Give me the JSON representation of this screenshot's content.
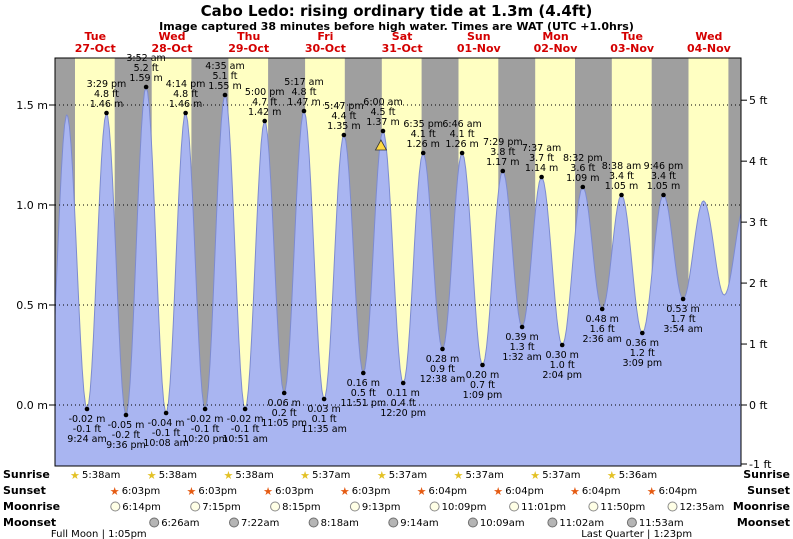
{
  "title": "Cabo Ledo: rising ordinary tide at 1.3m (4.4ft)",
  "subtitle": "Image captured 38 minutes before high water. Times are WAT (UTC +1.0hrs)",
  "colors": {
    "day_band": "#ffffc2",
    "night_band": "#9f9f9f",
    "tide_fill": "#a9b5f1",
    "tide_stroke": "#7d8bd0",
    "day_label": "#d40000",
    "now_marker": "#ffd942",
    "grid": "#000000",
    "sunrise_star": "#e3c126",
    "sunset_star": "#e55b13",
    "moonrise_fill": "#ffffe6",
    "moonrise_stroke": "#8a8a8a",
    "moonset_fill": "#b5b5b5",
    "moonset_stroke": "#6e6e6e"
  },
  "days": [
    {
      "weekday": "Tue",
      "date": "27-Oct",
      "daylight": [
        5.63,
        18.05
      ]
    },
    {
      "weekday": "Wed",
      "date": "28-Oct",
      "daylight": [
        5.63,
        18.05
      ]
    },
    {
      "weekday": "Thu",
      "date": "29-Oct",
      "daylight": [
        5.63,
        18.05
      ]
    },
    {
      "weekday": "Fri",
      "date": "30-Oct",
      "daylight": [
        5.62,
        18.05
      ]
    },
    {
      "weekday": "Sat",
      "date": "31-Oct",
      "daylight": [
        5.62,
        18.07
      ]
    },
    {
      "weekday": "Sun",
      "date": "01-Nov",
      "daylight": [
        5.62,
        18.07
      ]
    },
    {
      "weekday": "Mon",
      "date": "02-Nov",
      "daylight": [
        5.62,
        18.07
      ]
    },
    {
      "weekday": "Tue",
      "date": "03-Nov",
      "daylight": [
        5.6,
        18.07
      ]
    },
    {
      "weekday": "Wed",
      "date": "04-Nov",
      "daylight": [
        5.6,
        18.07
      ]
    }
  ],
  "y_axis": {
    "left": [
      {
        "text": "1.5 m",
        "m": 1.5
      },
      {
        "text": "1.0 m",
        "m": 1.0
      },
      {
        "text": "0.5 m",
        "m": 0.5
      },
      {
        "text": "0.0 m",
        "m": 0.0
      }
    ],
    "right": [
      {
        "text": "5 ft",
        "m": 1.524
      },
      {
        "text": "4 ft",
        "m": 1.2192
      },
      {
        "text": "3 ft",
        "m": 0.9144
      },
      {
        "text": "2 ft",
        "m": 0.6096
      },
      {
        "text": "1 ft",
        "m": 0.3048
      },
      {
        "text": "0 ft",
        "m": 0.0
      },
      {
        "text": "-1 ft",
        "m": -0.3048
      }
    ]
  },
  "chart_data": {
    "type": "area",
    "title": "Cabo Ledo tide height, Tue 27-Oct to Wed 04-Nov",
    "x_unit": "hours since Tue 27-Oct 00:00 WAT",
    "y_unit": "m",
    "xlim": [
      -0.62,
      214
    ],
    "ylim_m": [
      -0.305,
      1.735
    ],
    "grid_m": [
      0.0,
      0.5,
      1.0,
      1.5
    ],
    "legend": "blue area = tide height; yellow bands = daylight; gray bands = night",
    "extremes": [
      {
        "t": -2.9,
        "m": -0.02,
        "kind": "low"
      },
      {
        "t": 3.08,
        "m": 1.45,
        "kind": "high"
      },
      {
        "t": 9.4,
        "m": -0.02,
        "kind": "low",
        "lines": [
          "-0.02 m",
          "-0.1 ft",
          "9:24 am"
        ]
      },
      {
        "t": 15.48,
        "m": 1.46,
        "kind": "high",
        "lines": [
          "3:29 pm",
          "4.8 ft",
          "1.46 m"
        ]
      },
      {
        "t": 21.6,
        "m": -0.05,
        "kind": "low",
        "lines": [
          "-0.05 m",
          "-0.2 ft",
          "9:36 pm"
        ]
      },
      {
        "t": 27.87,
        "m": 1.59,
        "kind": "high",
        "lines": [
          "3:52 am",
          "5.2 ft",
          "1.59 m"
        ]
      },
      {
        "t": 34.13,
        "m": -0.04,
        "kind": "low",
        "lines": [
          "-0.04 m",
          "-0.1 ft",
          "10:08 am"
        ]
      },
      {
        "t": 40.23,
        "m": 1.46,
        "kind": "high",
        "lines": [
          "4:14 pm",
          "4.8 ft",
          "1.46 m"
        ]
      },
      {
        "t": 46.33,
        "m": -0.02,
        "kind": "low",
        "lines": [
          "-0.02 m",
          "-0.1 ft",
          "10:20 pm"
        ]
      },
      {
        "t": 52.58,
        "m": 1.55,
        "kind": "high",
        "lines": [
          "4:35 am",
          "5.1 ft",
          "1.55 m"
        ]
      },
      {
        "t": 58.85,
        "m": -0.02,
        "kind": "low",
        "lines": [
          "-0.02 m",
          "-0.1 ft",
          "10:51 am"
        ]
      },
      {
        "t": 65.0,
        "m": 1.42,
        "kind": "high",
        "lines": [
          "5:00 pm",
          "4.7 ft",
          "1.42 m"
        ]
      },
      {
        "t": 71.08,
        "m": 0.06,
        "kind": "low",
        "lines": [
          "0.06 m",
          "0.2 ft",
          "11:05 pm"
        ]
      },
      {
        "t": 77.28,
        "m": 1.47,
        "kind": "high",
        "lines": [
          "5:17 am",
          "4.8 ft",
          "1.47 m"
        ]
      },
      {
        "t": 83.58,
        "m": 0.03,
        "kind": "low",
        "lines": [
          "0.03 m",
          "0.1 ft",
          "11:35 am"
        ]
      },
      {
        "t": 89.78,
        "m": 1.35,
        "kind": "high",
        "lines": [
          "5:47 pm",
          "4.4 ft",
          "1.35 m"
        ]
      },
      {
        "t": 95.85,
        "m": 0.16,
        "kind": "low",
        "lines": [
          "0.16 m",
          "0.5 ft",
          "11:51 pm"
        ]
      },
      {
        "t": 102.0,
        "m": 1.37,
        "kind": "high",
        "lines": [
          "6:00 am",
          "4.5 ft",
          "1.37 m"
        ]
      },
      {
        "t": 108.33,
        "m": 0.11,
        "kind": "low",
        "lines": [
          "0.11 m",
          "0.4 ft",
          "12:20 pm"
        ]
      },
      {
        "t": 114.58,
        "m": 1.26,
        "kind": "high",
        "lines": [
          "6:35 pm",
          "4.1 ft",
          "1.26 m"
        ]
      },
      {
        "t": 120.63,
        "m": 0.28,
        "kind": "low",
        "lines": [
          "0.28 m",
          "0.9 ft",
          "12:38 am"
        ]
      },
      {
        "t": 126.77,
        "m": 1.26,
        "kind": "high",
        "lines": [
          "6:46 am",
          "4.1 ft",
          "1.26 m"
        ]
      },
      {
        "t": 133.15,
        "m": 0.2,
        "kind": "low",
        "lines": [
          "0.20 m",
          "0.7 ft",
          "1:09 pm"
        ]
      },
      {
        "t": 139.48,
        "m": 1.17,
        "kind": "high",
        "lines": [
          "7:29 pm",
          "3.8 ft",
          "1.17 m"
        ]
      },
      {
        "t": 145.53,
        "m": 0.39,
        "kind": "low",
        "lines": [
          "0.39 m",
          "1.3 ft",
          "1:32 am"
        ]
      },
      {
        "t": 151.62,
        "m": 1.14,
        "kind": "high",
        "lines": [
          "7:37 am",
          "3.7 ft",
          "1.14 m"
        ]
      },
      {
        "t": 158.07,
        "m": 0.3,
        "kind": "low",
        "lines": [
          "0.30 m",
          "1.0 ft",
          "2:04 pm"
        ]
      },
      {
        "t": 164.53,
        "m": 1.09,
        "kind": "high",
        "lines": [
          "8:32 pm",
          "3.6 ft",
          "1.09 m"
        ]
      },
      {
        "t": 170.6,
        "m": 0.48,
        "kind": "low",
        "lines": [
          "0.48 m",
          "1.6 ft",
          "2:36 am"
        ]
      },
      {
        "t": 176.63,
        "m": 1.05,
        "kind": "high",
        "lines": [
          "8:38 am",
          "3.4 ft",
          "1.05 m"
        ]
      },
      {
        "t": 183.15,
        "m": 0.36,
        "kind": "low",
        "lines": [
          "0.36 m",
          "1.2 ft",
          "3:09 pm"
        ]
      },
      {
        "t": 189.77,
        "m": 1.05,
        "kind": "high",
        "lines": [
          "9:46 pm",
          "3.4 ft",
          "1.05 m"
        ]
      },
      {
        "t": 195.9,
        "m": 0.53,
        "kind": "low",
        "lines": [
          "0.53 m",
          "1.7 ft",
          "3:54 am"
        ]
      },
      {
        "t": 202.3,
        "m": 1.02,
        "kind": "high"
      },
      {
        "t": 208.8,
        "m": 0.55,
        "kind": "low"
      },
      {
        "t": 215.3,
        "m": 1.0,
        "kind": "high"
      }
    ],
    "now_marker": {
      "t": 101.37,
      "m": 1.3,
      "description": "38 minutes before high water"
    }
  },
  "astro": {
    "rows": [
      {
        "id": "sunrise",
        "label": "Sunrise",
        "icon": "sunrise-star-icon",
        "entries": [
          {
            "t": 5.63,
            "time": "5:38am"
          },
          {
            "t": 29.63,
            "time": "5:38am"
          },
          {
            "t": 53.63,
            "time": "5:38am"
          },
          {
            "t": 77.62,
            "time": "5:37am"
          },
          {
            "t": 101.62,
            "time": "5:37am"
          },
          {
            "t": 125.62,
            "time": "5:37am"
          },
          {
            "t": 149.62,
            "time": "5:37am"
          },
          {
            "t": 173.6,
            "time": "5:36am"
          }
        ]
      },
      {
        "id": "sunset",
        "label": "Sunset",
        "icon": "sunset-star-icon",
        "entries": [
          {
            "t": 18.05,
            "time": "6:03pm"
          },
          {
            "t": 42.05,
            "time": "6:03pm"
          },
          {
            "t": 66.05,
            "time": "6:03pm"
          },
          {
            "t": 90.05,
            "time": "6:03pm"
          },
          {
            "t": 114.07,
            "time": "6:04pm"
          },
          {
            "t": 138.07,
            "time": "6:04pm"
          },
          {
            "t": 162.07,
            "time": "6:04pm"
          },
          {
            "t": 186.07,
            "time": "6:04pm"
          }
        ]
      },
      {
        "id": "moonrise",
        "label": "Moonrise",
        "icon": "moonrise-icon",
        "entries": [
          {
            "t": 18.23,
            "time": "6:14pm"
          },
          {
            "t": 43.25,
            "time": "7:15pm"
          },
          {
            "t": 68.25,
            "time": "8:15pm"
          },
          {
            "t": 93.22,
            "time": "9:13pm"
          },
          {
            "t": 118.15,
            "time": "10:09pm"
          },
          {
            "t": 143.02,
            "time": "11:01pm"
          },
          {
            "t": 167.83,
            "time": "11:50pm"
          },
          {
            "t": 192.58,
            "time": "12:35am"
          }
        ]
      },
      {
        "id": "moonset",
        "label": "Moonset",
        "icon": "moonset-icon",
        "entries": [
          {
            "t": 30.43,
            "time": "6:26am"
          },
          {
            "t": 55.37,
            "time": "7:22am"
          },
          {
            "t": 80.3,
            "time": "8:18am"
          },
          {
            "t": 105.23,
            "time": "9:14am"
          },
          {
            "t": 130.15,
            "time": "10:09am"
          },
          {
            "t": 155.03,
            "time": "11:02am"
          },
          {
            "t": 179.88,
            "time": "11:53am"
          }
        ]
      }
    ],
    "phases": [
      {
        "t": 13.08,
        "text": "Full Moon | 1:05pm"
      },
      {
        "t": 181.38,
        "text": "Last Quarter | 1:23pm"
      }
    ]
  }
}
